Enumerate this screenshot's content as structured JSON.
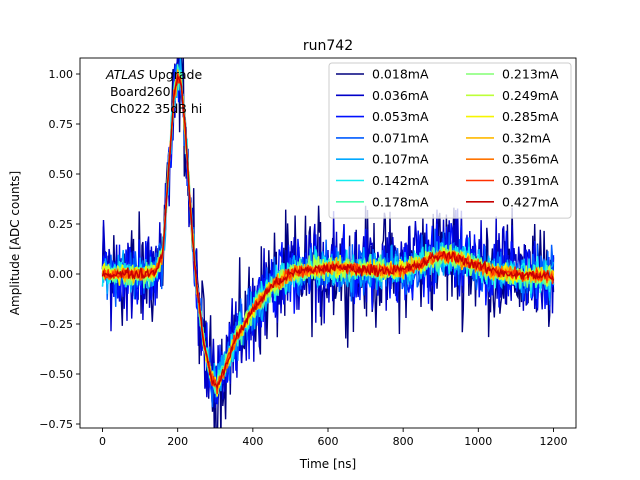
{
  "chart_data": {
    "type": "line",
    "title": "run742",
    "xlabel": "Time [ns]",
    "ylabel": "Amplitude [ADC counts]",
    "xlim": [
      -60,
      1260
    ],
    "ylim": [
      -0.77,
      1.08
    ],
    "xticks": [
      0,
      200,
      400,
      600,
      800,
      1000,
      1200
    ],
    "xtick_labels": [
      "0",
      "200",
      "400",
      "600",
      "800",
      "1000",
      "1200"
    ],
    "yticks": [
      -0.75,
      -0.5,
      -0.25,
      0.0,
      0.25,
      0.5,
      0.75,
      1.0
    ],
    "ytick_labels": [
      "−0.75",
      "−0.50",
      "−0.25",
      "0.00",
      "0.25",
      "0.50",
      "0.75",
      "1.00"
    ],
    "grid": false,
    "legend_position": "top-right",
    "legend_columns": 2,
    "annotation": {
      "italic_part": "ATLAS",
      "rest_of_line1": " Upgrade",
      "line2": " Board260",
      "line3": " Ch022 35dB hi"
    },
    "x": [
      0,
      50,
      100,
      140,
      160,
      175,
      190,
      200,
      210,
      220,
      235,
      250,
      270,
      290,
      305,
      320,
      350,
      400,
      450,
      500,
      550,
      600,
      650,
      700,
      750,
      800,
      850,
      880,
      910,
      940,
      970,
      1000,
      1050,
      1100,
      1150,
      1200
    ],
    "pulse": [
      0.0,
      0.0,
      0.0,
      0.01,
      0.1,
      0.5,
      0.88,
      1.0,
      0.95,
      0.72,
      0.3,
      -0.05,
      -0.35,
      -0.52,
      -0.57,
      -0.5,
      -0.34,
      -0.18,
      -0.06,
      0.0,
      0.02,
      0.03,
      0.03,
      0.02,
      0.02,
      0.02,
      0.05,
      0.08,
      0.095,
      0.085,
      0.06,
      0.04,
      0.01,
      0.0,
      -0.01,
      -0.01
    ],
    "series": [
      {
        "name": "0.018mA",
        "color": "#00007f",
        "noise": 0.14
      },
      {
        "name": "0.036mA",
        "color": "#0000c8",
        "noise": 0.11
      },
      {
        "name": "0.053mA",
        "color": "#0010ff",
        "noise": 0.085
      },
      {
        "name": "0.071mA",
        "color": "#005cff",
        "noise": 0.065
      },
      {
        "name": "0.107mA",
        "color": "#00a8ff",
        "noise": 0.05
      },
      {
        "name": "0.142mA",
        "color": "#12ecf0",
        "noise": 0.04
      },
      {
        "name": "0.178mA",
        "color": "#4bffac",
        "noise": 0.033
      },
      {
        "name": "0.213mA",
        "color": "#84ff73",
        "noise": 0.028
      },
      {
        "name": "0.249mA",
        "color": "#bdff39",
        "noise": 0.024
      },
      {
        "name": "0.285mA",
        "color": "#f6f500",
        "noise": 0.021
      },
      {
        "name": "0.32mA",
        "color": "#ffb900",
        "noise": 0.019
      },
      {
        "name": "0.356mA",
        "color": "#ff7300",
        "noise": 0.017
      },
      {
        "name": "0.391mA",
        "color": "#ff3000",
        "noise": 0.015
      },
      {
        "name": "0.427mA",
        "color": "#c80000",
        "noise": 0.013
      }
    ]
  }
}
